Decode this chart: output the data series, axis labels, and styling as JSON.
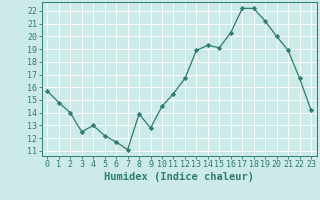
{
  "x": [
    0,
    1,
    2,
    3,
    4,
    5,
    6,
    7,
    8,
    9,
    10,
    11,
    12,
    13,
    14,
    15,
    16,
    17,
    18,
    19,
    20,
    21,
    22,
    23
  ],
  "y": [
    15.7,
    14.8,
    14.0,
    12.5,
    13.0,
    12.2,
    11.7,
    11.1,
    13.9,
    12.8,
    14.5,
    15.5,
    16.7,
    18.9,
    19.3,
    19.1,
    20.3,
    22.2,
    22.2,
    21.2,
    20.0,
    18.9,
    16.7,
    14.2
  ],
  "line_color": "#2e7d6e",
  "marker": "D",
  "marker_size": 2.2,
  "bg_color": "#cceae7",
  "grid_color": "#ffffff",
  "xlabel": "Humidex (Indice chaleur)",
  "ylim": [
    10.6,
    22.7
  ],
  "xlim": [
    -0.5,
    23.5
  ],
  "yticks": [
    11,
    12,
    13,
    14,
    15,
    16,
    17,
    18,
    19,
    20,
    21,
    22
  ],
  "xticks": [
    0,
    1,
    2,
    3,
    4,
    5,
    6,
    7,
    8,
    9,
    10,
    11,
    12,
    13,
    14,
    15,
    16,
    17,
    18,
    19,
    20,
    21,
    22,
    23
  ],
  "tick_color": "#2e7d6e",
  "label_color": "#2e7d6e",
  "xlabel_fontsize": 7.5,
  "tick_fontsize": 6.0
}
